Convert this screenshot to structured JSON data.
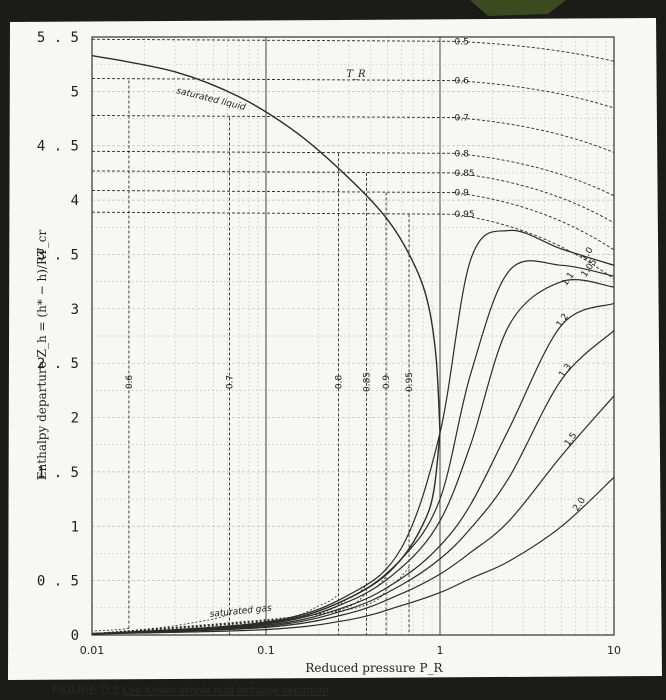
{
  "caption": {
    "label": "FIGURE D.2",
    "text": "Lee-Kesler simple fluid enthalpy departure"
  },
  "colors": {
    "curve": "#2b2b2b",
    "grid": "#bdbdbd",
    "paper": "#f7f7f4",
    "backdrop": "#1b1c18"
  },
  "chart_data": {
    "type": "line",
    "title": "",
    "xlabel": "Reduced pressure P_R",
    "ylabel": "Enthalpy departure Z_h = (h* − h)/RT_cr",
    "xscale": "log",
    "xlim": [
      0.01,
      10
    ],
    "ylim": [
      0,
      5.5
    ],
    "x_ticks": [
      "0.01",
      "0.1",
      "1",
      "10"
    ],
    "y_ticks": [
      "0",
      "0.5",
      "1",
      "1.5",
      "2",
      "2.5",
      "3",
      "3.5",
      "4",
      "4.5",
      "5",
      "5.5"
    ],
    "grid": true,
    "series_label_title": "T_R",
    "annotations": [
      "saturated liquid",
      "saturated gas"
    ],
    "saturated_liquid": {
      "x": [
        0.01,
        0.03,
        0.07,
        0.15,
        0.3,
        0.5,
        0.7,
        0.85,
        0.95,
        1.0
      ],
      "y": [
        5.33,
        5.18,
        4.95,
        4.62,
        4.2,
        3.82,
        3.43,
        3.06,
        2.55,
        1.86
      ]
    },
    "saturated_gas": {
      "x": [
        0.01,
        0.03,
        0.1,
        0.2,
        0.4,
        0.6,
        0.8,
        0.92,
        1.0
      ],
      "y": [
        0.015,
        0.04,
        0.11,
        0.22,
        0.45,
        0.7,
        1.02,
        1.32,
        1.86
      ]
    },
    "liquid_isotherms": [
      {
        "name": "0.5",
        "y": 5.46
      },
      {
        "name": "0.6",
        "y": 5.1
      },
      {
        "name": "0.7",
        "y": 4.76
      },
      {
        "name": "0.8",
        "y": 4.43
      },
      {
        "name": "0.85",
        "y": 4.25
      },
      {
        "name": "0.9",
        "y": 4.07
      },
      {
        "name": "0.95",
        "y": 3.87
      }
    ],
    "vapor_isotherms": [
      {
        "name": "0.6",
        "x_end": 0.0163
      },
      {
        "name": "0.7",
        "x_end": 0.0617
      },
      {
        "name": "0.8",
        "x_end": 0.261
      },
      {
        "name": "0.85",
        "x_end": 0.378
      },
      {
        "name": "0.9",
        "x_end": 0.49
      },
      {
        "name": "0.95",
        "x_end": 0.664
      }
    ],
    "supercritical_isotherms": [
      {
        "name": "1.0",
        "x": [
          0.01,
          0.1,
          0.3,
          0.6,
          1.0,
          1.5,
          2.5,
          5,
          10
        ],
        "y": [
          0.01,
          0.12,
          0.37,
          0.8,
          1.86,
          3.45,
          3.72,
          3.55,
          3.4
        ]
      },
      {
        "name": "1.05",
        "x": [
          0.01,
          0.1,
          0.3,
          0.6,
          1.0,
          1.5,
          2.5,
          5,
          10
        ],
        "y": [
          0.01,
          0.11,
          0.34,
          0.7,
          1.25,
          2.4,
          3.35,
          3.4,
          3.3
        ]
      },
      {
        "name": "1.1",
        "x": [
          0.01,
          0.1,
          0.3,
          0.6,
          1.0,
          1.5,
          2.5,
          5,
          10
        ],
        "y": [
          0.01,
          0.1,
          0.31,
          0.62,
          1.05,
          1.75,
          2.85,
          3.25,
          3.2
        ]
      },
      {
        "name": "1.2",
        "x": [
          0.01,
          0.1,
          0.3,
          0.6,
          1.0,
          1.5,
          2.5,
          5,
          10
        ],
        "y": [
          0.01,
          0.09,
          0.27,
          0.52,
          0.82,
          1.2,
          1.9,
          2.85,
          3.05
        ]
      },
      {
        "name": "1.3",
        "x": [
          0.01,
          0.1,
          0.3,
          0.6,
          1.0,
          1.5,
          2.5,
          5,
          10
        ],
        "y": [
          0.01,
          0.08,
          0.24,
          0.46,
          0.7,
          0.98,
          1.45,
          2.35,
          2.8
        ]
      },
      {
        "name": "1.5",
        "x": [
          0.01,
          0.1,
          0.3,
          0.6,
          1.0,
          1.5,
          2.5,
          5,
          10
        ],
        "y": [
          0.01,
          0.07,
          0.2,
          0.38,
          0.56,
          0.76,
          1.05,
          1.65,
          2.2
        ]
      },
      {
        "name": "2.0",
        "x": [
          0.01,
          0.1,
          0.3,
          0.6,
          1.0,
          1.5,
          2.5,
          5,
          10
        ],
        "y": [
          0.01,
          0.05,
          0.14,
          0.27,
          0.39,
          0.52,
          0.68,
          1.0,
          1.45
        ]
      }
    ]
  }
}
